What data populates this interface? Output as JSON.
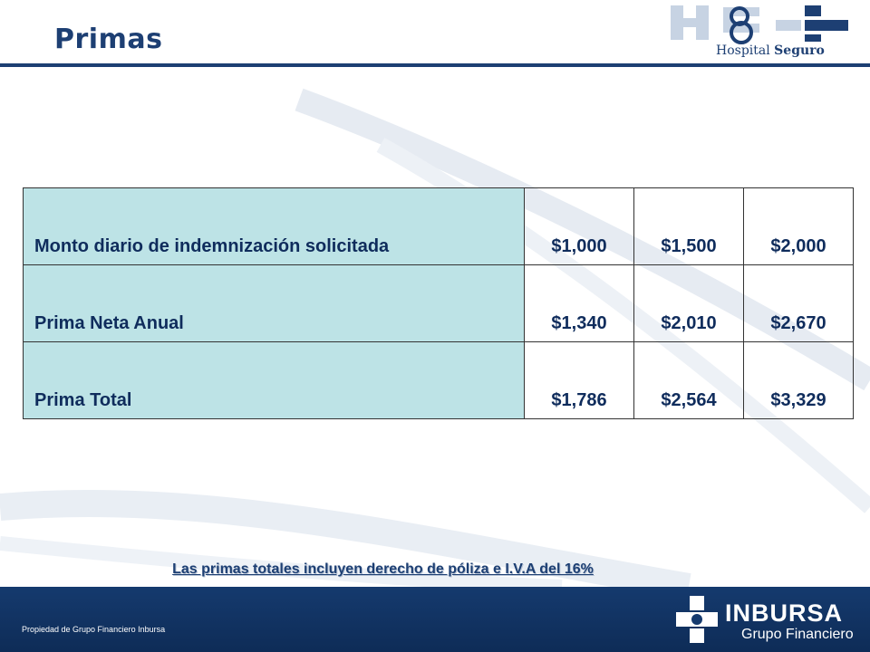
{
  "header": {
    "title": "Primas",
    "logo_hospital": "Hospital",
    "logo_seguro": "Seguro"
  },
  "table": {
    "rows": [
      {
        "label": "Monto diario de indemnización solicitada",
        "values": [
          "$1,000",
          "$1,500",
          "$2,000"
        ]
      },
      {
        "label": "Prima Neta Anual",
        "values": [
          "$1,340",
          "$2,010",
          "$2,670"
        ]
      },
      {
        "label": "Prima Total",
        "values": [
          "$1,786",
          "$2,564",
          "$3,329"
        ]
      }
    ]
  },
  "note": "Las primas totales incluyen derecho de póliza e I.V.A del 16%",
  "footer": {
    "ownership": "Propiedad de Grupo Financiero Inbursa",
    "brand": "INBURSA",
    "brand_sub": "Grupo Financiero"
  },
  "colors": {
    "primary": "#1d3f73",
    "label_cell": "#bde3e6",
    "footer_bg": "#153a6e"
  }
}
